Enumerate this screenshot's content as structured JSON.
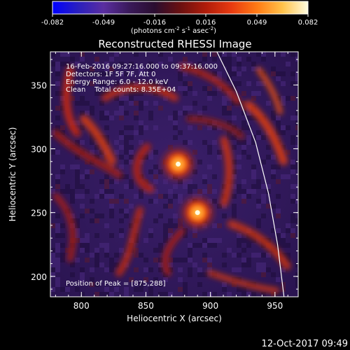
{
  "colorbar": {
    "tick_labels": [
      "-0.082",
      "-0.049",
      "-0.016",
      "0.016",
      "0.049",
      "0.082"
    ],
    "units_prefix": "(photons cm",
    "units_exp1": "-2",
    "units_mid": " s",
    "units_exp2": "-1",
    "units_mid2": " asec",
    "units_exp3": "-2",
    "units_suffix": ")",
    "colors": [
      "#0000ff",
      "#2a1fbf",
      "#5a2ea0",
      "#3a1a5a",
      "#2a0d30",
      "#6a1010",
      "#b01c0a",
      "#e83a10",
      "#ff7a14",
      "#ffc24a",
      "#fffde0"
    ]
  },
  "chart_data": {
    "type": "heatmap",
    "title": "Reconstructed RHESSI Image",
    "xlabel": "Heliocentric X (arcsec)",
    "ylabel": "Heliocentric Y (arcsec)",
    "xlim": [
      776,
      968
    ],
    "ylim": [
      184,
      376
    ],
    "x_ticks": [
      800,
      850,
      900,
      950
    ],
    "y_ticks": [
      200,
      250,
      300,
      350
    ],
    "x_tick_labels": [
      "800",
      "850",
      "900",
      "950"
    ],
    "y_tick_labels": [
      "200",
      "250",
      "300",
      "350"
    ],
    "value_range": [
      -0.082,
      0.082
    ],
    "peaks": [
      {
        "x": 875,
        "y": 288,
        "value": 0.082
      },
      {
        "x": 890,
        "y": 250,
        "value": 0.08
      }
    ],
    "limb": [
      [
        905,
        376
      ],
      [
        920,
        345
      ],
      [
        935,
        305
      ],
      [
        945,
        265
      ],
      [
        952,
        225
      ],
      [
        957,
        184
      ]
    ],
    "annotations": {
      "time": "16-Feb-2016 09:27:16.000 to 09:37:16.000",
      "detectors": "Detectors: 1F 5F 7F, Att 0",
      "energy": "Energy Range: 6.0 - 12.0 keV",
      "clean": "Clean    Total counts: 8.35E+04",
      "peak": "Position of Peak = [875,288]"
    }
  },
  "footer": {
    "date": "12-Oct-2017 09:49"
  }
}
